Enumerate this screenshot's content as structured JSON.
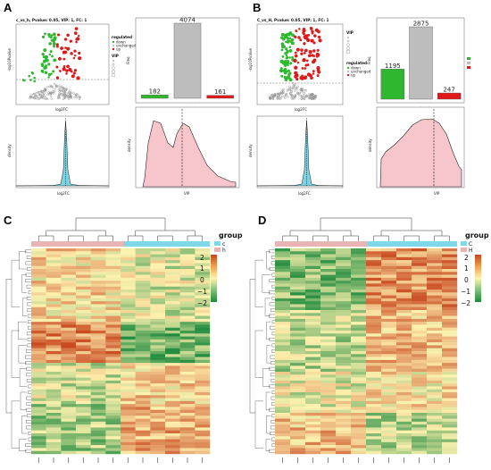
{
  "panels": {
    "A": {
      "letter": "A",
      "volcano": {
        "title": "c_vs_h, Pvalue: 0.05, VIP: 1, FC: 1",
        "xlabel": "log2FC",
        "ylabel": "-log10Pvalue",
        "legend_regulated_title": "regulated",
        "legend_items": [
          "down",
          "unchanged",
          "up"
        ],
        "legend_vip_title": "VIP"
      },
      "bar": {
        "ylabel": "Freq",
        "xlabel": "regulated",
        "categories": [
          "down",
          "unchanged",
          "up"
        ],
        "values": [
          182,
          4074,
          161
        ],
        "value_labels": [
          "182",
          "4074",
          "161"
        ]
      },
      "density_fc": {
        "xlabel": "log2FC",
        "ylabel": "density"
      },
      "density_vip": {
        "xlabel": "VIP",
        "ylabel": "density"
      }
    },
    "B": {
      "letter": "B",
      "volcano": {
        "title": "C_vs_H, Pvalue: 0.05, VIP: 1, FC: 1",
        "xlabel": "log2FC",
        "ylabel": "-log10Pvalue",
        "legend_regulated_title": "regulated",
        "legend_items": [
          "down",
          "unchanged",
          "up"
        ],
        "legend_vip_title": "VIP"
      },
      "bar": {
        "ylabel": "Freq",
        "xlabel": "regulated",
        "categories": [
          "down",
          "unchanged",
          "up"
        ],
        "values": [
          1195,
          2875,
          247
        ],
        "value_labels": [
          "1195",
          "2875",
          "247"
        ]
      },
      "density_fc": {
        "xlabel": "log2FC",
        "ylabel": "density"
      },
      "density_vip": {
        "xlabel": "VIP",
        "ylabel": "density"
      }
    },
    "C": {
      "letter": "C",
      "legend_title": "group",
      "groups": [
        "c",
        "h"
      ],
      "scale_ticks": [
        "2",
        "1",
        "0",
        "−1",
        "−2"
      ]
    },
    "D": {
      "letter": "D",
      "legend_title": "group",
      "groups": [
        "C",
        "H"
      ],
      "scale_ticks": [
        "2",
        "1",
        "0",
        "−1",
        "−2"
      ]
    }
  },
  "colors": {
    "down": "#2fb82f",
    "unchanged": "#bdbdbd",
    "up": "#e01818",
    "density_fc": "#7fd0e0",
    "density_vip": "#f7c5cc",
    "group_a": "#7fd8e8",
    "group_b": "#e8b4b4",
    "heat_low": "#1e8a3c",
    "heat_mid": "#fff3b0",
    "heat_high": "#c8461e"
  },
  "chart_data": [
    {
      "panel": "A",
      "type": "bar",
      "categories": [
        "down",
        "unchanged",
        "up"
      ],
      "values": [
        182,
        4074,
        161
      ],
      "xlabel": "regulated",
      "ylabel": "Freq"
    },
    {
      "panel": "B",
      "type": "bar",
      "categories": [
        "down",
        "unchanged",
        "up"
      ],
      "values": [
        1195,
        2875,
        247
      ],
      "xlabel": "regulated",
      "ylabel": "Freq"
    },
    {
      "panel": "A",
      "type": "scatter",
      "title": "c_vs_h, Pvalue: 0.05, VIP: 1, FC: 1",
      "xlabel": "log2FC",
      "ylabel": "-log10Pvalue",
      "series": [
        {
          "name": "down",
          "count": 182
        },
        {
          "name": "unchanged",
          "count": 4074
        },
        {
          "name": "up",
          "count": 161
        }
      ]
    },
    {
      "panel": "B",
      "type": "scatter",
      "title": "C_vs_H, Pvalue: 0.05, VIP: 1, FC: 1",
      "xlabel": "log2FC",
      "ylabel": "-log10Pvalue",
      "series": [
        {
          "name": "down",
          "count": 1195
        },
        {
          "name": "unchanged",
          "count": 2875
        },
        {
          "name": "up",
          "count": 247
        }
      ]
    },
    {
      "panel": "C",
      "type": "heatmap",
      "groups": [
        "c",
        "h"
      ],
      "scale": [
        -2,
        2
      ]
    },
    {
      "panel": "D",
      "type": "heatmap",
      "groups": [
        "C",
        "H"
      ],
      "scale": [
        -2,
        2
      ]
    }
  ]
}
